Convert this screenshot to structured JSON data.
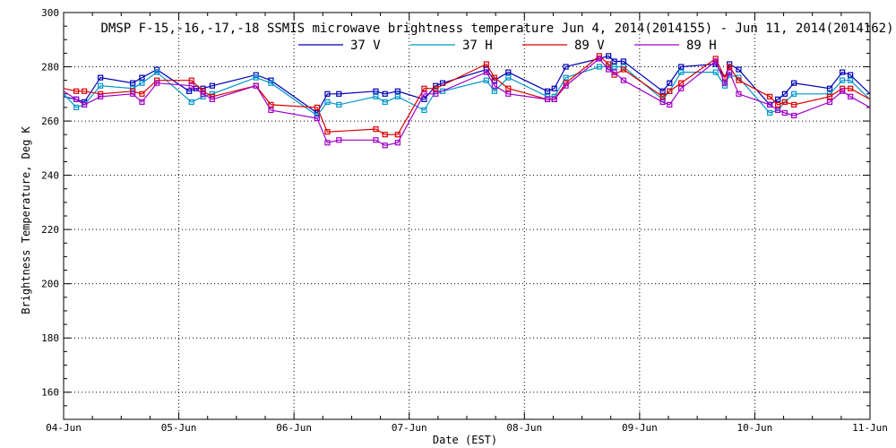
{
  "chart_data": {
    "type": "line",
    "title": "DMSP F-15,-16,-17,-18 SSMIS microwave brightness temperature Jun  4, 2014(2014155) - Jun 11, 2014(2014162)",
    "xlabel": "Date (EST)",
    "ylabel": "Brightness Temperature, Deg K",
    "xlim": [
      0,
      7
    ],
    "ylim": [
      150,
      300
    ],
    "grid": true,
    "legend": "top-center",
    "x_ticks": [
      "04-Jun",
      "05-Jun",
      "06-Jun",
      "07-Jun",
      "08-Jun",
      "09-Jun",
      "10-Jun",
      "11-Jun"
    ],
    "y_ticks": [
      160,
      180,
      200,
      220,
      240,
      260,
      280,
      300
    ],
    "series": [
      {
        "name": "37 V",
        "color": "#0000b4",
        "x": [
          0.0,
          0.11,
          0.18,
          0.32,
          0.6,
          0.68,
          0.81,
          1.09,
          1.15,
          1.21,
          1.29,
          1.67,
          1.8,
          2.2,
          2.29,
          2.39,
          2.71,
          2.79,
          2.9,
          3.13,
          3.23,
          3.29,
          3.67,
          3.74,
          3.86,
          4.2,
          4.26,
          4.36,
          4.65,
          4.73,
          4.78,
          4.86,
          5.2,
          5.26,
          5.36,
          5.66,
          5.74,
          5.78,
          5.86,
          6.13,
          6.2,
          6.26,
          6.34,
          6.65,
          6.76,
          6.83,
          7.0
        ],
        "y": [
          269,
          268,
          267,
          276,
          274,
          276,
          279,
          271,
          272,
          272,
          273,
          277,
          275,
          263,
          270,
          270,
          271,
          270,
          271,
          268,
          273,
          274,
          279,
          275,
          278,
          271,
          272,
          280,
          283,
          284,
          282,
          282,
          271,
          274,
          280,
          281,
          276,
          281,
          279,
          266,
          268,
          270,
          274,
          272,
          278,
          277,
          270
        ]
      },
      {
        "name": "37 H",
        "color": "#0096c8",
        "x": [
          0.0,
          0.11,
          0.18,
          0.32,
          0.6,
          0.68,
          0.81,
          1.11,
          1.21,
          1.29,
          1.67,
          1.8,
          2.2,
          2.29,
          2.39,
          2.71,
          2.79,
          2.9,
          3.13,
          3.23,
          3.29,
          3.67,
          3.74,
          3.86,
          4.2,
          4.26,
          4.36,
          4.65,
          4.73,
          4.78,
          4.86,
          5.2,
          5.26,
          5.36,
          5.66,
          5.74,
          5.78,
          5.86,
          6.13,
          6.2,
          6.26,
          6.34,
          6.65,
          6.76,
          6.83,
          7.0
        ],
        "y": [
          270,
          265,
          266,
          273,
          272,
          274,
          278,
          267,
          269,
          270,
          276,
          274,
          262,
          267,
          266,
          269,
          267,
          269,
          264,
          271,
          271,
          275,
          271,
          276,
          269,
          269,
          276,
          280,
          280,
          280,
          280,
          268,
          271,
          278,
          278,
          273,
          277,
          276,
          263,
          264,
          267,
          270,
          270,
          275,
          275,
          268
        ]
      },
      {
        "name": "89 V",
        "color": "#dc0000",
        "x": [
          0.0,
          0.11,
          0.18,
          0.32,
          0.6,
          0.68,
          0.81,
          1.11,
          1.21,
          1.29,
          1.67,
          1.8,
          2.2,
          2.29,
          2.71,
          2.79,
          2.9,
          3.13,
          3.23,
          3.67,
          3.74,
          3.86,
          4.2,
          4.26,
          4.36,
          4.65,
          4.73,
          4.78,
          4.86,
          5.2,
          5.26,
          5.36,
          5.66,
          5.74,
          5.78,
          5.86,
          6.13,
          6.2,
          6.26,
          6.34,
          6.65,
          6.76,
          6.83,
          7.0
        ],
        "y": [
          272,
          271,
          271,
          270,
          271,
          270,
          275,
          275,
          271,
          269,
          273,
          266,
          265,
          256,
          257,
          255,
          255,
          272,
          272,
          281,
          276,
          272,
          268,
          268,
          274,
          284,
          281,
          277,
          279,
          269,
          271,
          274,
          283,
          276,
          280,
          275,
          269,
          266,
          267,
          266,
          269,
          272,
          272,
          268
        ]
      },
      {
        "name": "89 H",
        "color": "#a000c8",
        "x": [
          0.0,
          0.11,
          0.18,
          0.32,
          0.6,
          0.68,
          0.81,
          1.11,
          1.21,
          1.29,
          1.67,
          1.8,
          2.2,
          2.29,
          2.39,
          2.71,
          2.79,
          2.9,
          3.13,
          3.23,
          3.67,
          3.74,
          3.86,
          4.2,
          4.26,
          4.36,
          4.65,
          4.73,
          4.78,
          4.86,
          5.2,
          5.26,
          5.36,
          5.66,
          5.74,
          5.78,
          5.86,
          6.13,
          6.2,
          6.26,
          6.34,
          6.65,
          6.76,
          6.83,
          7.0
        ],
        "y": [
          271,
          268,
          266,
          269,
          270,
          267,
          274,
          273,
          270,
          268,
          273,
          264,
          261,
          252,
          253,
          253,
          251,
          252,
          270,
          270,
          278,
          273,
          270,
          268,
          268,
          273,
          283,
          279,
          278,
          275,
          267,
          266,
          272,
          282,
          274,
          278,
          270,
          266,
          264,
          263,
          262,
          267,
          271,
          269,
          265
        ]
      }
    ]
  }
}
